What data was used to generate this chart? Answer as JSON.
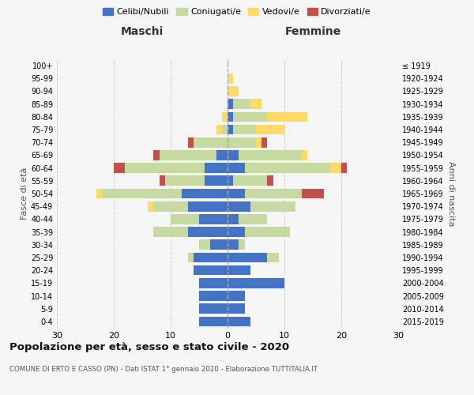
{
  "age_groups": [
    "0-4",
    "5-9",
    "10-14",
    "15-19",
    "20-24",
    "25-29",
    "30-34",
    "35-39",
    "40-44",
    "45-49",
    "50-54",
    "55-59",
    "60-64",
    "65-69",
    "70-74",
    "75-79",
    "80-84",
    "85-89",
    "90-94",
    "95-99",
    "100+"
  ],
  "birth_years": [
    "2015-2019",
    "2010-2014",
    "2005-2009",
    "2000-2004",
    "1995-1999",
    "1990-1994",
    "1985-1989",
    "1980-1984",
    "1975-1979",
    "1970-1974",
    "1965-1969",
    "1960-1964",
    "1955-1959",
    "1950-1954",
    "1945-1949",
    "1940-1944",
    "1935-1939",
    "1930-1934",
    "1925-1929",
    "1920-1924",
    "≤ 1919"
  ],
  "maschi": {
    "celibi": [
      5,
      5,
      5,
      5,
      6,
      6,
      3,
      7,
      5,
      7,
      8,
      4,
      4,
      2,
      0,
      0,
      0,
      0,
      0,
      0,
      0
    ],
    "coniugati": [
      0,
      0,
      0,
      0,
      0,
      1,
      2,
      6,
      5,
      6,
      14,
      7,
      14,
      10,
      6,
      1,
      0,
      0,
      0,
      0,
      0
    ],
    "vedovi": [
      0,
      0,
      0,
      0,
      0,
      0,
      0,
      0,
      0,
      1,
      1,
      0,
      0,
      0,
      0,
      1,
      1,
      0,
      0,
      0,
      0
    ],
    "divorziati": [
      0,
      0,
      0,
      0,
      0,
      0,
      0,
      0,
      0,
      0,
      0,
      1,
      2,
      1,
      1,
      0,
      0,
      0,
      0,
      0,
      0
    ]
  },
  "femmine": {
    "nubili": [
      4,
      3,
      3,
      10,
      4,
      7,
      2,
      3,
      2,
      4,
      3,
      1,
      3,
      2,
      0,
      1,
      1,
      1,
      0,
      0,
      0
    ],
    "coniugate": [
      0,
      0,
      0,
      0,
      0,
      2,
      1,
      8,
      5,
      8,
      10,
      6,
      15,
      11,
      5,
      4,
      6,
      3,
      0,
      0,
      0
    ],
    "vedove": [
      0,
      0,
      0,
      0,
      0,
      0,
      0,
      0,
      0,
      0,
      0,
      0,
      2,
      1,
      1,
      5,
      7,
      2,
      2,
      1,
      0
    ],
    "divorziate": [
      0,
      0,
      0,
      0,
      0,
      0,
      0,
      0,
      0,
      0,
      4,
      1,
      1,
      0,
      1,
      0,
      0,
      0,
      0,
      0,
      0
    ]
  },
  "colors": {
    "celibi": "#4472C4",
    "coniugati": "#C5D9A0",
    "vedovi": "#FFD966",
    "divorziati": "#C0504D"
  },
  "title": "Popolazione per età, sesso e stato civile - 2020",
  "subtitle": "COMUNE DI ERTO E CASSO (PN) - Dati ISTAT 1° gennaio 2020 - Elaborazione TUTTITALIA.IT",
  "xlabel_left": "Maschi",
  "xlabel_right": "Femmine",
  "ylabel_left": "Fasce di età",
  "ylabel_right": "Anni di nascita",
  "xlim": 30,
  "legend_labels": [
    "Celibi/Nubili",
    "Coniugati/e",
    "Vedovi/e",
    "Divorziati/e"
  ],
  "background_color": "#f5f5f5",
  "grid_color": "#cccccc"
}
